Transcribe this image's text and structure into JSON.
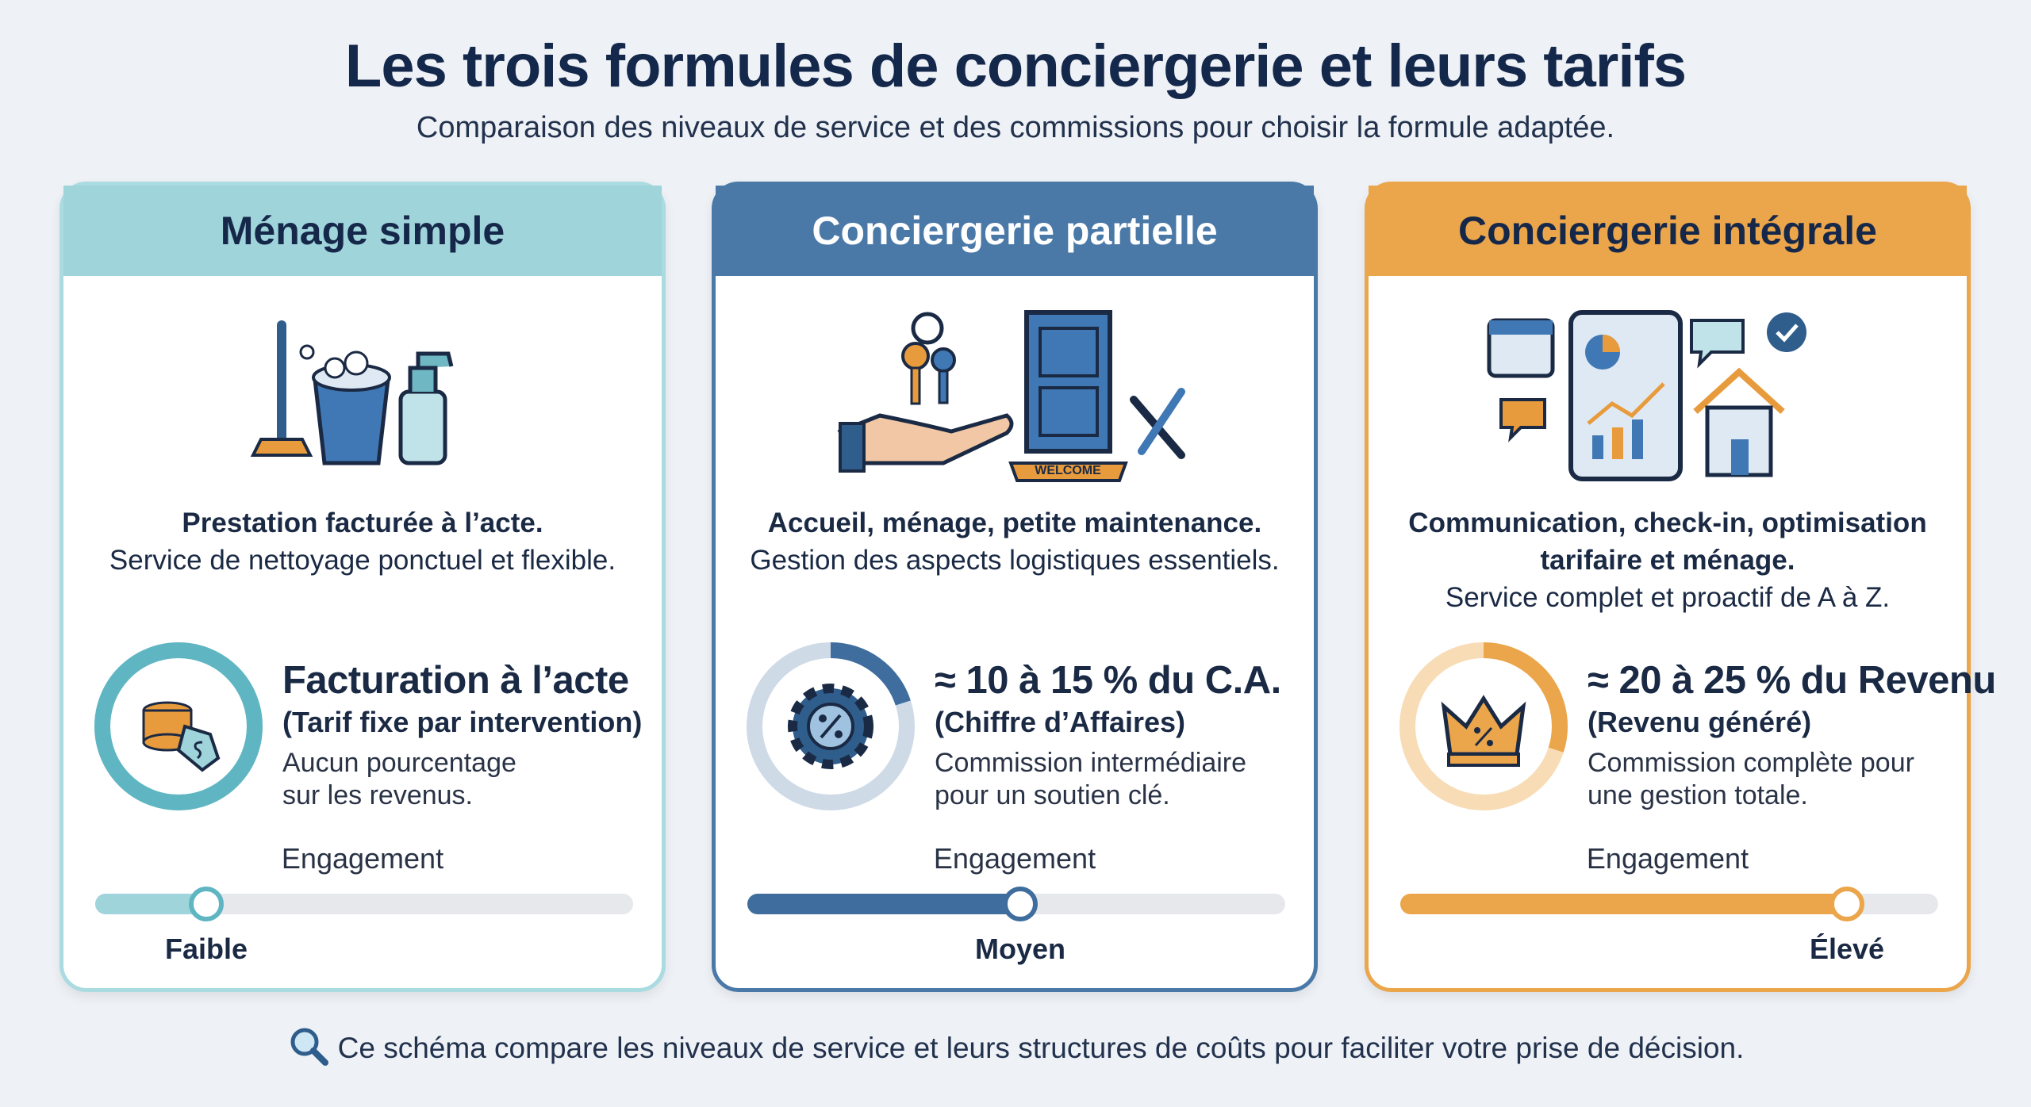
{
  "header": {
    "title": "Les trois formules de conciergerie et leurs tarifs",
    "subtitle": "Comparaison des niveaux de service et des commissions pour choisir la formule adaptée."
  },
  "cards": [
    {
      "title": "Ménage simple",
      "desc_bold": [
        "Prestation facturée à l’acte."
      ],
      "desc": "Service de nettoyage ponctuel et flexible.",
      "price_title": "Facturation à l’acte",
      "price_subtitle": "(Tarif fixe par intervention)",
      "price_note": [
        "Aucun pourcentage",
        "sur les revenus."
      ],
      "engagement_label": "Engagement",
      "engagement_level": "Faible"
    },
    {
      "title": "Conciergerie partielle",
      "icon_text": "WELCOME",
      "desc_bold": [
        "Accueil, ménage, petite maintenance."
      ],
      "desc": "Gestion des aspects logistiques essentiels.",
      "price_title": "≈ 10 à 15 % du C.A.",
      "price_subtitle": "(Chiffre d’Affaires)",
      "price_note": [
        "Commission intermédiaire",
        "pour un soutien clé."
      ],
      "engagement_label": "Engagement",
      "engagement_level": "Moyen"
    },
    {
      "title": "Conciergerie intégrale",
      "desc_bold": [
        "Communication, check-in, optimisation",
        "tarifaire et ménage."
      ],
      "desc": "Service complet et proactif de A à Z.",
      "price_title": "≈ 20 à 25 % du Revenu",
      "price_subtitle": "(Revenu généré)",
      "price_note": [
        "Commission complète pour",
        "une gestion totale."
      ],
      "engagement_label": "Engagement",
      "engagement_level": "Élevé"
    }
  ],
  "footer": {
    "text": "Ce schéma compare les niveaux de service et leurs structures de coûts pour faciliter votre prise de décision."
  }
}
